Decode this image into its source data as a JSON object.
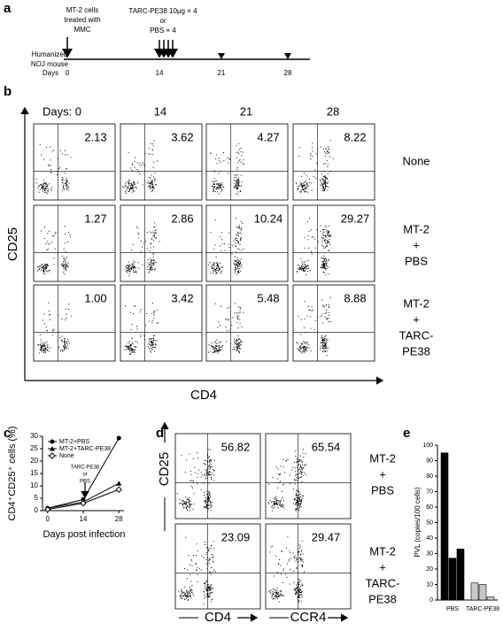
{
  "panel_labels": [
    "a",
    "b",
    "c",
    "d",
    "e"
  ],
  "timeline": {
    "subject": [
      "Humanized",
      "NOJ mouse"
    ],
    "days_label": "Days",
    "days": [
      "0",
      "14",
      "21",
      "28"
    ],
    "mmc_note": [
      "MT-2 cells",
      "treated with",
      "MMC"
    ],
    "treatment_note": [
      "TARC-PE38 10μg × 4",
      "or",
      "PBS × 4"
    ]
  },
  "flow_cd4": {
    "columns": [
      "Days: 0",
      "14",
      "21",
      "28"
    ],
    "rows": [
      [
        "None"
      ],
      [
        "MT-2",
        "+",
        "PBS"
      ],
      [
        "MT-2",
        "+",
        "TARC-",
        "PE38"
      ]
    ],
    "percents": [
      [
        "2.13",
        "3.62",
        "4.27",
        "8.22"
      ],
      [
        "1.27",
        "2.86",
        "10.24",
        "29.27"
      ],
      [
        "1.00",
        "3.42",
        "5.48",
        "8.88"
      ]
    ],
    "y_label": "CD25",
    "x_label": "CD4"
  },
  "flow_ccr4": {
    "rows": [
      [
        "MT-2",
        "+",
        "PBS"
      ],
      [
        "MT-2",
        "+",
        "TARC-",
        "PE38"
      ]
    ],
    "percents": [
      [
        "56.82",
        "65.54"
      ],
      [
        "23.09",
        "29.47"
      ]
    ],
    "y_label": "CD25",
    "x_labels": [
      "CD4",
      "CCR4"
    ]
  },
  "chart_data": [
    {
      "type": "line",
      "y_label": "CD4⁺CD25⁺ cells (%)",
      "x_label": "Days post infection",
      "x": [
        0,
        14,
        28
      ],
      "xlim": [
        -2,
        30
      ],
      "xticks": [
        0,
        14,
        28
      ],
      "ylim": [
        0,
        30
      ],
      "yticks": [
        0,
        5,
        10,
        15,
        20,
        25,
        30
      ],
      "annotation": [
        "TARC-PE38",
        "or",
        "PBS"
      ],
      "series": [
        {
          "name": "MT-2+PBS",
          "color": "#000000",
          "marker": "circle",
          "values": [
            1,
            4.5,
            29.3
          ]
        },
        {
          "name": "MT-2+TARC-PE38",
          "color": "#000000",
          "marker": "triangle",
          "values": [
            1,
            3.5,
            11
          ]
        },
        {
          "name": "None",
          "color": "#000000",
          "marker": "diamond-open",
          "values": [
            0.5,
            3,
            8.5
          ]
        }
      ]
    },
    {
      "type": "bar",
      "y_label": "PVL (copies/100 cells)",
      "categories": [
        "PBS",
        "TARC-PE38"
      ],
      "colors": [
        "#000000",
        "#c8c8c8"
      ],
      "ylim": [
        0,
        100
      ],
      "yticks": [
        0,
        10,
        20,
        30,
        40,
        50,
        60,
        70,
        80,
        90,
        100
      ],
      "series": [
        {
          "values": [
            95,
            11
          ]
        },
        {
          "values": [
            27,
            10
          ]
        },
        {
          "values": [
            33,
            2
          ]
        }
      ]
    }
  ]
}
